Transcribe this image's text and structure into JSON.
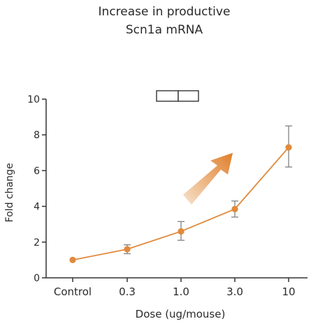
{
  "title_line1": "Increase in productive",
  "title_line2": "Scn1a mRNA",
  "colors": {
    "series": "#e08a3c",
    "axis": "#333333",
    "error_bar": "#8a8a8a",
    "arrow_start": "#f7e2cc",
    "arrow_end": "#e07f2c"
  },
  "chart_data": {
    "type": "line",
    "title": "Increase in productive Scn1a mRNA",
    "xlabel": "Dose (ug/mouse)",
    "ylabel": "Fold change",
    "categories": [
      "Control",
      "0.3",
      "1.0",
      "3.0",
      "10"
    ],
    "ylim": [
      0,
      10
    ],
    "yticks": [
      "0",
      "2",
      "4",
      "6",
      "8",
      "10"
    ],
    "grid": false,
    "legend": "none",
    "series": [
      {
        "values": [
          1.0,
          1.6,
          2.6,
          3.85,
          7.3
        ],
        "error_low": [
          0.95,
          1.35,
          2.1,
          3.4,
          6.2
        ],
        "error_high": [
          1.05,
          1.85,
          3.15,
          4.3,
          8.5
        ]
      }
    ],
    "annotations": [
      "increasing-trend-arrow",
      "two-box-symbol"
    ]
  }
}
